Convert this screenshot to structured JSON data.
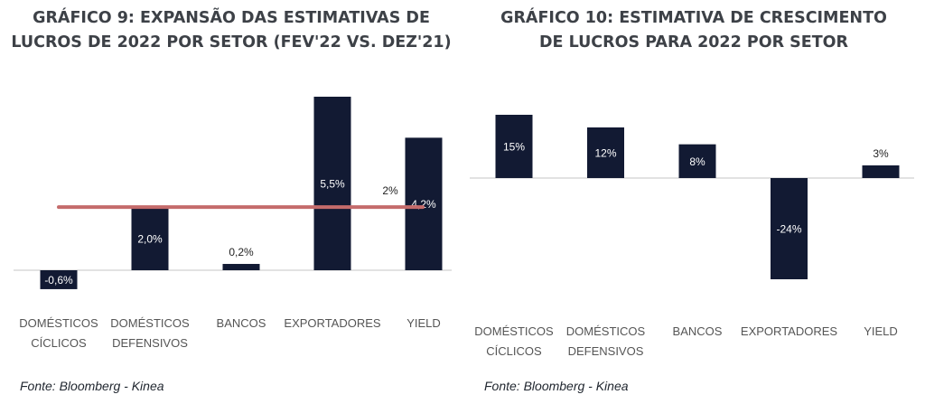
{
  "charts": [
    {
      "title_lines": [
        "GRÁFICO 9: EXPANSÃO DAS ESTIMATIVAS DE",
        "LUCROS DE 2022 POR SETOR (FEV'22 VS. DEZ'21)"
      ],
      "source": "Fonte: Bloomberg - Kinea"
    },
    {
      "title_lines": [
        "GRÁFICO 10: ESTIMATIVA DE CRESCIMENTO",
        "DE LUCROS PARA 2022 POR SETOR"
      ],
      "source": "Fonte: Bloomberg - Kinea"
    }
  ],
  "colors": {
    "bar": "#121a33",
    "reference_line": "#c46b6b",
    "axis": "#d9d9d9",
    "label_text": "#ffffff",
    "category_text": "#555555"
  },
  "chart_data": [
    {
      "type": "bar",
      "title": "GRÁFICO 9: EXPANSÃO DAS ESTIMATIVAS DE LUCROS DE 2022 POR SETOR (FEV'22 VS. DEZ'21)",
      "categories": [
        "DOMÉSTICOS CÍCLICOS",
        "DOMÉSTICOS DEFENSIVOS",
        "BANCOS",
        "EXPORTADORES",
        "YIELD"
      ],
      "category_lines": [
        [
          "DOMÉSTICOS",
          "CÍCLICOS"
        ],
        [
          "DOMÉSTICOS",
          "DEFENSIVOS"
        ],
        [
          "BANCOS"
        ],
        [
          "EXPORTADORES"
        ],
        [
          "YIELD"
        ]
      ],
      "values": [
        -0.6,
        2.0,
        0.2,
        5.5,
        4.2
      ],
      "data_labels": [
        "-0,6%",
        "2,0%",
        "0,2%",
        "5,5%",
        "4,2%"
      ],
      "reference_line": {
        "value": 2.0,
        "label": "2%"
      },
      "ylim": [
        -0.6,
        5.5
      ],
      "grid": false,
      "legend": "none"
    },
    {
      "type": "bar",
      "title": "GRÁFICO 10: ESTIMATIVA DE CRESCIMENTO DE LUCROS PARA 2022 POR SETOR",
      "categories": [
        "DOMÉSTICOS CÍCLICOS",
        "DOMÉSTICOS DEFENSIVOS",
        "BANCOS",
        "EXPORTADORES",
        "YIELD"
      ],
      "category_lines": [
        [
          "DOMÉSTICOS",
          "CÍCLICOS"
        ],
        [
          "DOMÉSTICOS",
          "DEFENSIVOS"
        ],
        [
          "BANCOS"
        ],
        [
          "EXPORTADORES"
        ],
        [
          "YIELD"
        ]
      ],
      "values": [
        15,
        12,
        8,
        -24,
        3
      ],
      "data_labels": [
        "15%",
        "12%",
        "8%",
        "-24%",
        "3%"
      ],
      "ylim": [
        -24,
        15
      ],
      "grid": false,
      "legend": "none"
    }
  ]
}
